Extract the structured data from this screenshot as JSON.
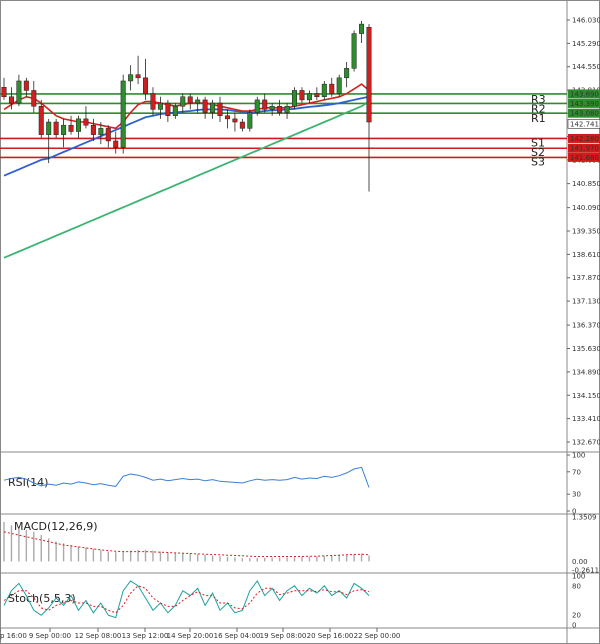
{
  "chart_data": {
    "type": "candlestick",
    "price_axis": {
      "ticks": [
        "146.030",
        "145.290",
        "144.550",
        "143.810",
        "143.080",
        "142.340",
        "141.600",
        "140.850",
        "140.090",
        "139.350",
        "138.610",
        "137.870",
        "137.130",
        "136.370",
        "135.630",
        "134.890",
        "134.150",
        "133.410",
        "132.670"
      ],
      "min": 132.67,
      "max": 146.03
    },
    "x_axis_labels": [
      "p 16:00",
      "9 Sep 00:00",
      "12 Sep 08:00",
      "13 Sep 12:00",
      "14 Sep 20:00",
      "16 Sep 04:00",
      "19 Sep 08:00",
      "20 Sep 16:00",
      "22 Sep 00:00"
    ],
    "current_price": "142.741",
    "levels": [
      {
        "name": "R3",
        "value": 143.69,
        "label": "143.690",
        "color": "#2e8b2e"
      },
      {
        "name": "R2",
        "value": 143.39,
        "label": "143.390",
        "color": "#2e8b2e"
      },
      {
        "name": "R1",
        "value": 143.08,
        "label": "143.080",
        "color": "#2e8b2e"
      },
      {
        "name": "S1",
        "value": 142.28,
        "label": "142.280",
        "color": "#d11a1a"
      },
      {
        "name": "S2",
        "value": 141.97,
        "label": "141.970",
        "color": "#d11a1a"
      },
      {
        "name": "S3",
        "value": 141.68,
        "label": "141.680",
        "color": "#d11a1a"
      }
    ],
    "candles": [
      {
        "o": 143.9,
        "h": 144.2,
        "l": 143.5,
        "c": 143.6
      },
      {
        "o": 143.6,
        "h": 143.9,
        "l": 143.2,
        "c": 143.4
      },
      {
        "o": 143.4,
        "h": 144.3,
        "l": 143.3,
        "c": 144.1
      },
      {
        "o": 144.1,
        "h": 144.2,
        "l": 143.6,
        "c": 143.8
      },
      {
        "o": 143.8,
        "h": 144.1,
        "l": 143.1,
        "c": 143.3
      },
      {
        "o": 143.3,
        "h": 143.5,
        "l": 142.3,
        "c": 142.4
      },
      {
        "o": 142.4,
        "h": 142.9,
        "l": 141.5,
        "c": 142.8
      },
      {
        "o": 142.8,
        "h": 142.9,
        "l": 142.3,
        "c": 142.4
      },
      {
        "o": 142.4,
        "h": 142.9,
        "l": 142.0,
        "c": 142.7
      },
      {
        "o": 142.7,
        "h": 143.0,
        "l": 142.4,
        "c": 142.5
      },
      {
        "o": 142.5,
        "h": 143.0,
        "l": 142.3,
        "c": 142.9
      },
      {
        "o": 142.9,
        "h": 143.3,
        "l": 142.6,
        "c": 142.7
      },
      {
        "o": 142.7,
        "h": 142.9,
        "l": 142.2,
        "c": 142.4
      },
      {
        "o": 142.4,
        "h": 142.8,
        "l": 142.1,
        "c": 142.6
      },
      {
        "o": 142.6,
        "h": 142.7,
        "l": 142.0,
        "c": 142.2
      },
      {
        "o": 142.2,
        "h": 142.5,
        "l": 141.8,
        "c": 142.0
      },
      {
        "o": 142.0,
        "h": 144.3,
        "l": 141.8,
        "c": 144.1
      },
      {
        "o": 144.1,
        "h": 144.6,
        "l": 143.8,
        "c": 144.3
      },
      {
        "o": 144.3,
        "h": 144.9,
        "l": 144.0,
        "c": 144.2
      },
      {
        "o": 144.2,
        "h": 144.8,
        "l": 143.5,
        "c": 143.7
      },
      {
        "o": 143.7,
        "h": 143.9,
        "l": 143.0,
        "c": 143.2
      },
      {
        "o": 143.2,
        "h": 143.6,
        "l": 142.9,
        "c": 143.4
      },
      {
        "o": 143.4,
        "h": 143.5,
        "l": 142.8,
        "c": 143.0
      },
      {
        "o": 143.0,
        "h": 143.4,
        "l": 142.9,
        "c": 143.3
      },
      {
        "o": 143.3,
        "h": 143.7,
        "l": 143.1,
        "c": 143.6
      },
      {
        "o": 143.6,
        "h": 143.7,
        "l": 143.2,
        "c": 143.4
      },
      {
        "o": 143.4,
        "h": 143.6,
        "l": 143.1,
        "c": 143.5
      },
      {
        "o": 143.5,
        "h": 143.6,
        "l": 142.9,
        "c": 143.1
      },
      {
        "o": 143.1,
        "h": 143.5,
        "l": 142.9,
        "c": 143.4
      },
      {
        "o": 143.4,
        "h": 143.6,
        "l": 142.8,
        "c": 143.0
      },
      {
        "o": 143.0,
        "h": 143.2,
        "l": 142.6,
        "c": 142.9
      },
      {
        "o": 142.9,
        "h": 143.1,
        "l": 142.5,
        "c": 142.8
      },
      {
        "o": 142.8,
        "h": 142.9,
        "l": 142.5,
        "c": 142.6
      },
      {
        "o": 142.6,
        "h": 143.2,
        "l": 142.5,
        "c": 143.1
      },
      {
        "o": 143.1,
        "h": 143.6,
        "l": 143.0,
        "c": 143.5
      },
      {
        "o": 143.5,
        "h": 143.7,
        "l": 143.1,
        "c": 143.2
      },
      {
        "o": 143.2,
        "h": 143.4,
        "l": 143.0,
        "c": 143.3
      },
      {
        "o": 143.3,
        "h": 143.5,
        "l": 143.0,
        "c": 143.1
      },
      {
        "o": 143.1,
        "h": 143.4,
        "l": 142.9,
        "c": 143.3
      },
      {
        "o": 143.3,
        "h": 143.9,
        "l": 143.2,
        "c": 143.8
      },
      {
        "o": 143.8,
        "h": 143.9,
        "l": 143.4,
        "c": 143.5
      },
      {
        "o": 143.5,
        "h": 143.8,
        "l": 143.4,
        "c": 143.7
      },
      {
        "o": 143.7,
        "h": 143.9,
        "l": 143.5,
        "c": 143.6
      },
      {
        "o": 143.6,
        "h": 144.1,
        "l": 143.5,
        "c": 144.0
      },
      {
        "o": 144.0,
        "h": 144.2,
        "l": 143.6,
        "c": 143.7
      },
      {
        "o": 143.7,
        "h": 144.3,
        "l": 143.6,
        "c": 144.2
      },
      {
        "o": 144.2,
        "h": 144.7,
        "l": 143.9,
        "c": 144.5
      },
      {
        "o": 144.5,
        "h": 145.7,
        "l": 144.4,
        "c": 145.6
      },
      {
        "o": 145.6,
        "h": 146.0,
        "l": 145.3,
        "c": 145.9
      },
      {
        "o": 145.8,
        "h": 145.9,
        "l": 140.6,
        "c": 142.8
      }
    ],
    "ma_fast": [
      143.2,
      143.35,
      143.5,
      143.6,
      143.55,
      143.4,
      143.2,
      143.0,
      142.9,
      142.85,
      142.8,
      142.8,
      142.75,
      142.7,
      142.65,
      142.6,
      142.8,
      143.1,
      143.35,
      143.45,
      143.45,
      143.4,
      143.35,
      143.3,
      143.35,
      143.4,
      143.4,
      143.4,
      143.35,
      143.3,
      143.25,
      143.2,
      143.15,
      143.15,
      143.2,
      143.25,
      143.25,
      143.25,
      143.25,
      143.3,
      143.35,
      143.4,
      143.45,
      143.5,
      143.55,
      143.6,
      143.7,
      143.85,
      144.0,
      143.8
    ],
    "ma_mid": [
      141.1,
      141.2,
      141.3,
      141.4,
      141.5,
      141.6,
      141.65,
      141.75,
      141.85,
      141.95,
      142.05,
      142.15,
      142.25,
      142.35,
      142.45,
      142.55,
      142.65,
      142.75,
      142.85,
      142.95,
      143.0,
      143.05,
      143.08,
      143.1,
      143.13,
      143.15,
      143.18,
      143.2,
      143.2,
      143.2,
      143.18,
      143.15,
      143.12,
      143.1,
      143.12,
      143.15,
      143.17,
      143.18,
      143.2,
      143.22,
      143.25,
      143.28,
      143.3,
      143.33,
      143.36,
      143.4,
      143.45,
      143.5,
      143.55,
      143.6
    ],
    "ma_slow": [
      138.5,
      138.6,
      138.7,
      138.8,
      138.9,
      139.0,
      139.1,
      139.2,
      139.3,
      139.4,
      139.5,
      139.6,
      139.7,
      139.8,
      139.9,
      140.0,
      140.1,
      140.2,
      140.3,
      140.4,
      140.5,
      140.6,
      140.7,
      140.8,
      140.9,
      141.0,
      141.1,
      141.2,
      141.3,
      141.4,
      141.5,
      141.6,
      141.7,
      141.8,
      141.9,
      142.0,
      142.1,
      142.2,
      142.3,
      142.4,
      142.5,
      142.6,
      142.7,
      142.8,
      142.9,
      143.0,
      143.1,
      143.2,
      143.3,
      143.45
    ],
    "rsi": {
      "label": "RSI(14)",
      "ticks": [
        "100",
        "70",
        "30",
        "0"
      ],
      "values": [
        55,
        58,
        60,
        57,
        50,
        45,
        48,
        46,
        50,
        48,
        52,
        50,
        47,
        49,
        46,
        44,
        62,
        66,
        64,
        60,
        55,
        57,
        54,
        56,
        58,
        56,
        57,
        54,
        56,
        53,
        52,
        51,
        50,
        54,
        57,
        55,
        56,
        55,
        56,
        60,
        57,
        59,
        58,
        62,
        60,
        63,
        68,
        75,
        78,
        42
      ]
    },
    "macd": {
      "label": "MACD(12,26,9)",
      "ticks": [
        "1.3509",
        "0.00",
        "-0.2611"
      ],
      "hist": [
        1.2,
        1.1,
        1.0,
        0.95,
        0.9,
        0.8,
        0.7,
        0.6,
        0.55,
        0.5,
        0.45,
        0.42,
        0.38,
        0.34,
        0.3,
        0.28,
        0.3,
        0.33,
        0.35,
        0.35,
        0.33,
        0.3,
        0.28,
        0.26,
        0.25,
        0.24,
        0.22,
        0.2,
        0.18,
        0.16,
        0.14,
        0.12,
        0.1,
        0.1,
        0.1,
        0.11,
        0.12,
        0.12,
        0.12,
        0.13,
        0.14,
        0.15,
        0.16,
        0.17,
        0.18,
        0.19,
        0.2,
        0.22,
        0.24,
        0.18
      ],
      "signal": [
        0.9,
        0.85,
        0.8,
        0.75,
        0.7,
        0.65,
        0.6,
        0.55,
        0.5,
        0.47,
        0.44,
        0.41,
        0.38,
        0.35,
        0.33,
        0.31,
        0.3,
        0.3,
        0.3,
        0.3,
        0.29,
        0.28,
        0.27,
        0.26,
        0.25,
        0.24,
        0.23,
        0.22,
        0.21,
        0.2,
        0.19,
        0.18,
        0.17,
        0.16,
        0.15,
        0.15,
        0.15,
        0.15,
        0.15,
        0.15,
        0.15,
        0.16,
        0.16,
        0.17,
        0.18,
        0.19,
        0.2,
        0.21,
        0.22,
        0.2
      ]
    },
    "stoch": {
      "label": "Stoch(5,5,3)",
      "ticks": [
        "100",
        "80",
        "20",
        "0"
      ],
      "k": [
        40,
        70,
        85,
        60,
        30,
        20,
        35,
        55,
        40,
        60,
        30,
        50,
        25,
        45,
        20,
        15,
        70,
        90,
        80,
        55,
        30,
        45,
        25,
        40,
        70,
        60,
        75,
        40,
        65,
        30,
        45,
        25,
        30,
        70,
        90,
        60,
        75,
        50,
        70,
        80,
        60,
        75,
        65,
        80,
        60,
        70,
        55,
        85,
        75,
        60
      ],
      "d": [
        50,
        60,
        70,
        70,
        55,
        35,
        30,
        40,
        45,
        50,
        45,
        45,
        38,
        38,
        30,
        25,
        40,
        65,
        80,
        75,
        55,
        45,
        38,
        38,
        50,
        60,
        68,
        60,
        60,
        45,
        45,
        35,
        33,
        45,
        65,
        75,
        75,
        62,
        65,
        70,
        70,
        70,
        68,
        72,
        68,
        68,
        62,
        70,
        72,
        68
      ]
    }
  }
}
